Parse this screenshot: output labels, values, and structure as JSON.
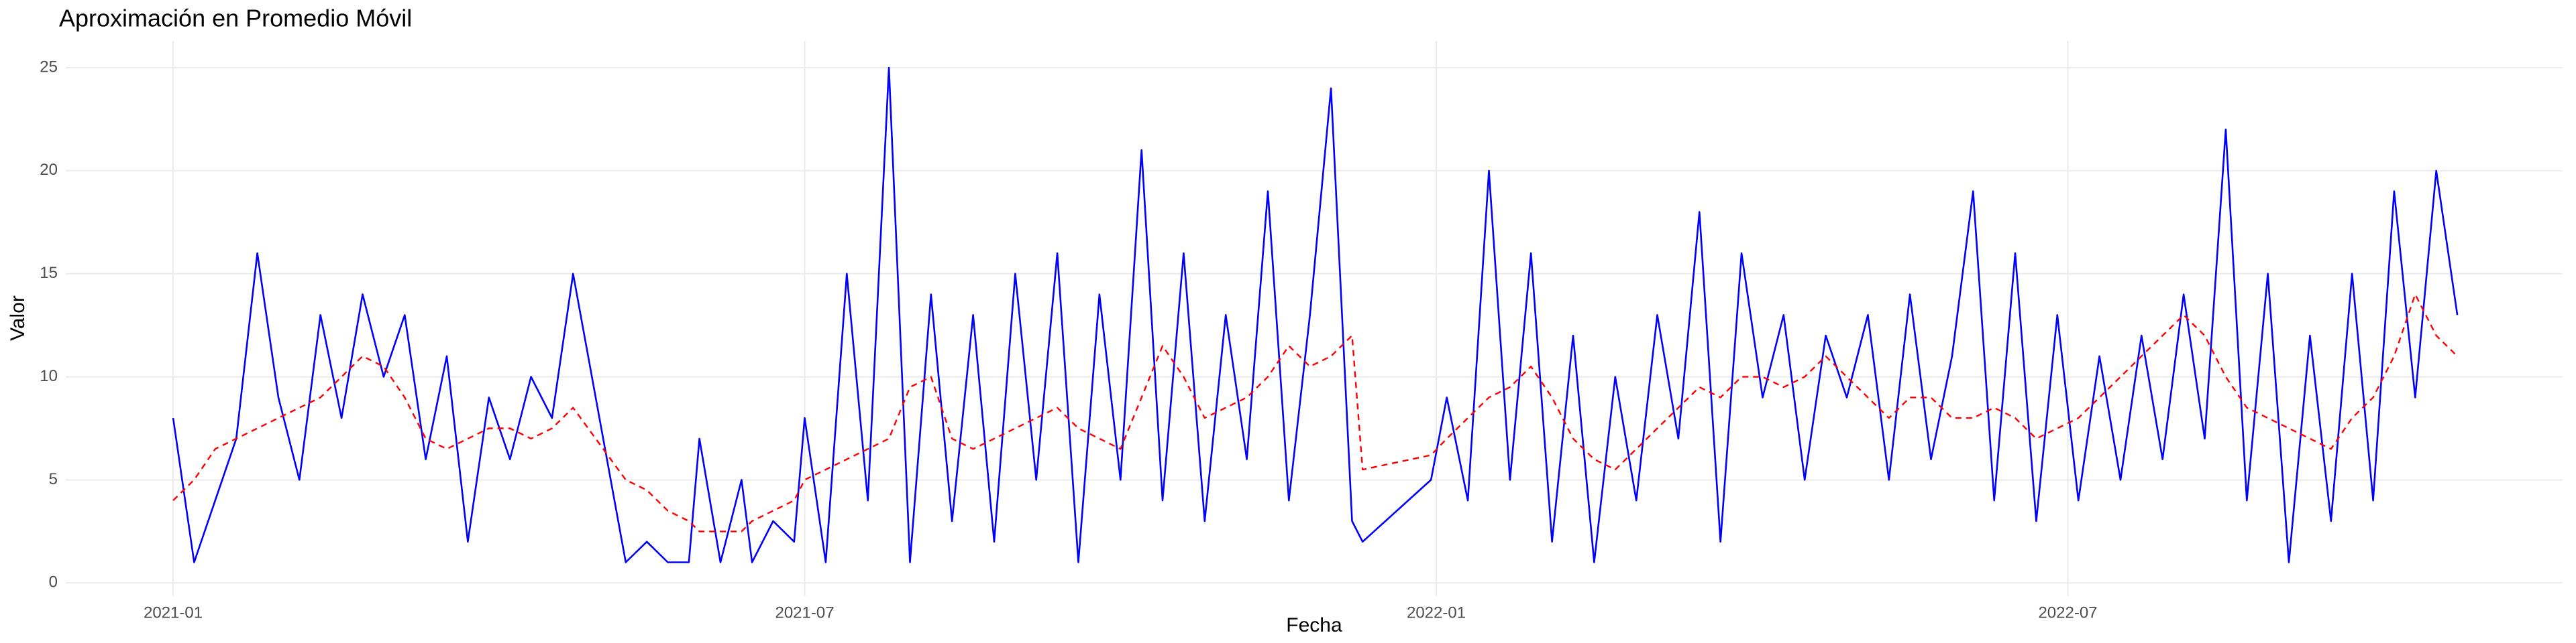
{
  "chart_data": {
    "type": "line",
    "title": "Aproximación en Promedio Móvil",
    "x_label": "Fecha",
    "y_label": "Valor",
    "x": [
      0.0,
      0.2,
      0.4,
      0.6,
      0.8,
      1.0,
      1.2,
      1.4,
      1.6,
      1.8,
      2.0,
      2.2,
      2.4,
      2.6,
      2.8,
      3.0,
      3.2,
      3.4,
      3.6,
      3.8,
      4.3,
      4.5,
      4.7,
      4.9,
      5.0,
      5.2,
      5.4,
      5.5,
      5.7,
      5.9,
      6.0,
      6.2,
      6.4,
      6.6,
      6.8,
      7.0,
      7.2,
      7.4,
      7.6,
      7.8,
      8.0,
      8.2,
      8.4,
      8.6,
      8.8,
      9.0,
      9.2,
      9.4,
      9.6,
      9.8,
      10.0,
      10.2,
      10.4,
      10.6,
      10.8,
      11.0,
      11.2,
      11.3,
      11.95,
      12.1,
      12.3,
      12.5,
      12.7,
      12.9,
      13.1,
      13.3,
      13.5,
      13.7,
      13.9,
      14.1,
      14.3,
      14.5,
      14.7,
      14.9,
      15.1,
      15.3,
      15.5,
      15.7,
      15.9,
      16.1,
      16.3,
      16.5,
      16.7,
      16.9,
      17.1,
      17.3,
      17.5,
      17.7,
      17.9,
      18.1,
      18.3,
      18.5,
      18.7,
      18.9,
      19.1,
      19.3,
      19.5,
      19.7,
      19.9,
      20.1,
      20.3,
      20.5,
      20.7,
      20.9,
      21.1,
      21.3,
      21.5,
      21.7
    ],
    "series": [
      {
        "color": "#0000ff",
        "dash": "solid",
        "values": [
          8,
          1,
          4,
          7,
          16,
          9,
          5,
          13,
          8,
          14,
          10,
          13,
          6,
          11,
          2,
          9,
          6,
          10,
          8,
          15,
          1,
          2,
          1,
          1,
          7,
          1,
          5,
          1,
          3,
          2,
          8,
          1,
          15,
          4,
          25,
          1,
          14,
          3,
          13,
          2,
          15,
          5,
          16,
          1,
          14,
          5,
          21,
          4,
          16,
          3,
          13,
          6,
          19,
          4,
          13,
          24,
          3,
          2,
          5,
          9,
          4,
          20,
          5,
          16,
          2,
          12,
          1,
          10,
          4,
          13,
          7,
          18,
          2,
          16,
          9,
          13,
          5,
          12,
          9,
          13,
          5,
          14,
          6,
          11,
          19,
          4,
          16,
          3,
          13,
          4,
          11,
          5,
          12,
          6,
          14,
          7,
          22,
          4,
          15,
          1,
          12,
          3,
          15,
          4,
          19,
          9,
          20,
          13
        ]
      },
      {
        "color": "#ff0000",
        "dash": "dashed",
        "values": [
          4,
          5,
          6.5,
          7,
          7.5,
          8,
          8.5,
          9,
          10,
          11,
          10.5,
          9,
          7,
          6.5,
          7,
          7.5,
          7.5,
          7,
          7.5,
          8.5,
          5,
          4.5,
          3.5,
          3,
          2.5,
          2.5,
          2.5,
          3,
          3.5,
          4,
          5,
          5.5,
          6,
          6.5,
          7,
          9.5,
          10,
          7,
          6.5,
          7,
          7.5,
          8,
          8.5,
          7.5,
          7,
          6.5,
          9,
          11.5,
          10,
          8,
          8.5,
          9,
          10,
          11.5,
          10.5,
          11,
          12,
          5.5,
          6.2,
          7,
          8,
          9,
          9.5,
          10.5,
          9,
          7,
          6,
          5.5,
          6.5,
          7.5,
          8.5,
          9.5,
          9,
          10,
          10,
          9.5,
          10,
          11,
          10,
          9,
          8,
          9,
          9,
          8,
          8,
          8.5,
          8,
          7,
          7.5,
          8,
          9,
          10,
          11,
          12,
          13,
          12,
          10,
          8.5,
          8,
          7.5,
          7,
          6.5,
          8,
          9,
          11,
          14,
          12,
          11
        ]
      }
    ],
    "xlim": [
      -1.02,
      22.7
    ],
    "xticks": [
      {
        "value": 0,
        "label": "2021-01"
      },
      {
        "value": 6,
        "label": "2021-07"
      },
      {
        "value": 12,
        "label": "2022-01"
      },
      {
        "value": 18,
        "label": "2022-07"
      }
    ],
    "ylim": [
      -0.64,
      26.3
    ],
    "yticks": [
      0,
      5,
      10,
      15,
      20,
      25
    ],
    "grid": true
  }
}
